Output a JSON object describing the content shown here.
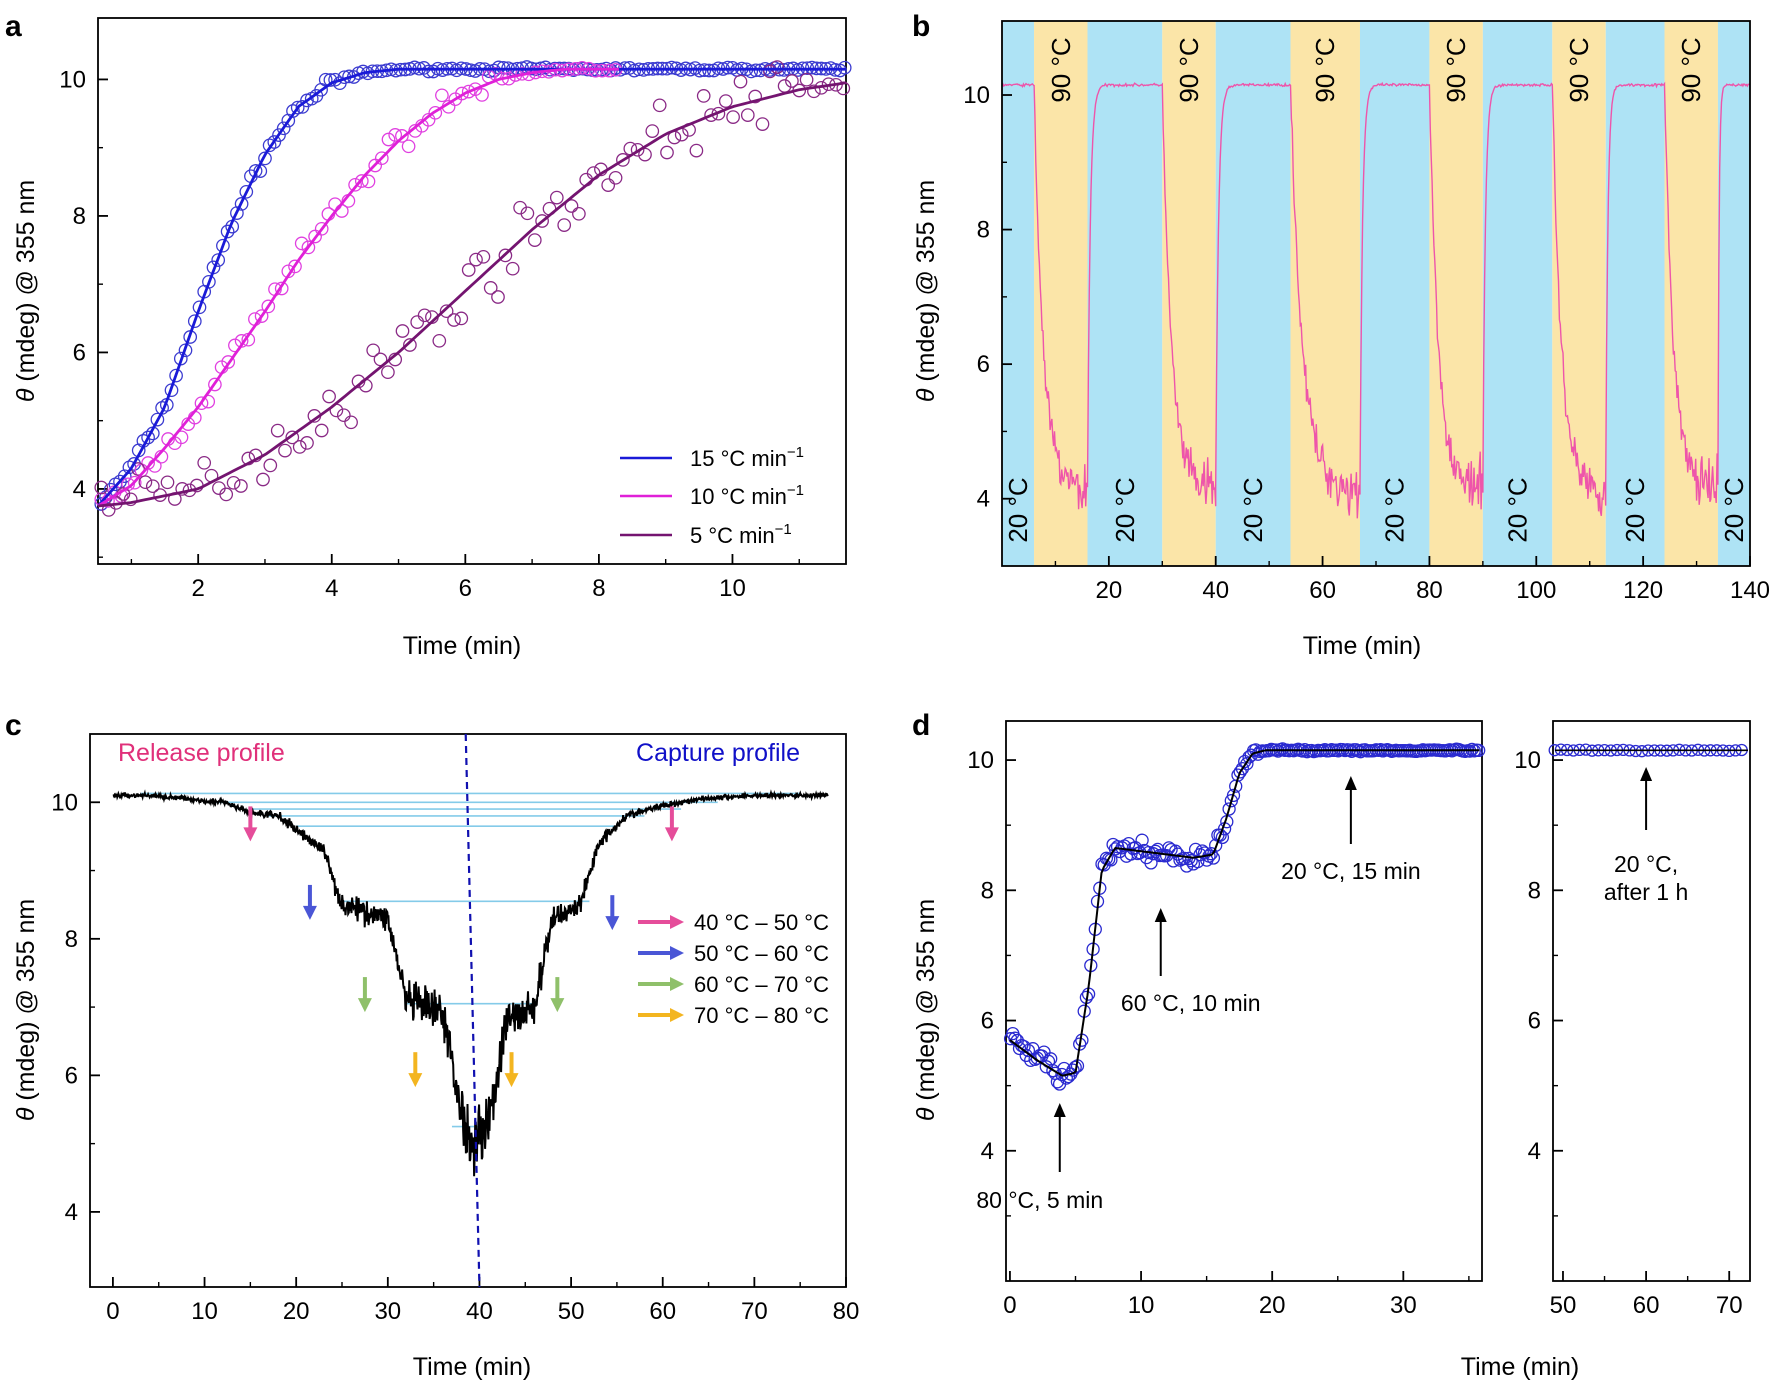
{
  "chart_data": [
    {
      "panel": "a",
      "type": "scatter",
      "panel_label": "a",
      "xlabel": "Time (min)",
      "ylabel_theta": "θ",
      "ylabel_rest": " (mdeg) @ 355 nm",
      "xlim": [
        0.5,
        11.7
      ],
      "ylim": [
        2.9,
        10.9
      ],
      "xticks": [
        2,
        4,
        6,
        8,
        10
      ],
      "yticks": [
        4,
        6,
        8,
        10
      ],
      "series": [
        {
          "name": "15 °C min",
          "sup": "−1",
          "color": "#1a1ad8",
          "marker_color": "#3b3bd0",
          "curve": {
            "x": [
              0.5,
              1,
              1.5,
              2,
              2.5,
              3,
              3.5,
              4,
              4.5,
              5,
              6,
              8,
              10,
              11.7
            ],
            "y": [
              3.75,
              4.3,
              5.2,
              6.6,
              7.9,
              8.9,
              9.6,
              9.95,
              10.1,
              10.15,
              10.15,
              10.15,
              10.15,
              10.15
            ]
          }
        },
        {
          "name": "10 °C min",
          "sup": "−1",
          "color": "#e020d8",
          "marker_color": "#e040e0",
          "curve": {
            "x": [
              0.5,
              1,
              1.5,
              2,
              2.5,
              3,
              3.5,
              4,
              4.5,
              5,
              5.5,
              6,
              6.5,
              7,
              7.5,
              8,
              8.3
            ],
            "y": [
              3.75,
              4.05,
              4.6,
              5.2,
              5.9,
              6.6,
              7.35,
              8.0,
              8.6,
              9.1,
              9.5,
              9.8,
              10.0,
              10.1,
              10.15,
              10.15,
              10.15
            ]
          }
        },
        {
          "name": "5 °C min",
          "sup": "−1",
          "color": "#741470",
          "marker_color": "#8a2a86",
          "curve": {
            "x": [
              0.5,
              1,
              2,
              3,
              4,
              5,
              6,
              7,
              8,
              9,
              10,
              11,
              11.7
            ],
            "y": [
              3.75,
              3.8,
              4.0,
              4.5,
              5.2,
              6.0,
              6.9,
              7.8,
              8.6,
              9.2,
              9.6,
              9.85,
              9.95
            ]
          }
        }
      ]
    },
    {
      "panel": "b",
      "type": "line",
      "panel_label": "b",
      "xlabel": "Time (min)",
      "ylabel_theta": "θ",
      "ylabel_rest": " (mdeg) @ 355 nm",
      "xlim": [
        0,
        140
      ],
      "ylim": [
        3.0,
        11.1
      ],
      "xticks": [
        20,
        40,
        60,
        80,
        100,
        120,
        140
      ],
      "yticks": [
        4,
        6,
        8,
        10
      ],
      "line_color": "#ee55aa",
      "cold_color": "#aee3f5",
      "hot_color": "#fbe5a8",
      "bands": [
        {
          "from": 0,
          "to": 6,
          "label": "20 °C"
        },
        {
          "from": 6,
          "to": 16,
          "label": "90 °C"
        },
        {
          "from": 16,
          "to": 30,
          "label": "20 °C"
        },
        {
          "from": 30,
          "to": 40,
          "label": "90 °C"
        },
        {
          "from": 40,
          "to": 54,
          "label": "20 °C"
        },
        {
          "from": 54,
          "to": 67,
          "label": "90 °C"
        },
        {
          "from": 67,
          "to": 80,
          "label": "20 °C"
        },
        {
          "from": 80,
          "to": 90,
          "label": "90 °C"
        },
        {
          "from": 90,
          "to": 103,
          "label": "20 °C"
        },
        {
          "from": 103,
          "to": 113,
          "label": "90 °C"
        },
        {
          "from": 113,
          "to": 124,
          "label": "20 °C"
        },
        {
          "from": 124,
          "to": 134,
          "label": "90 °C"
        },
        {
          "from": 134,
          "to": 140,
          "label": "20 °C"
        }
      ],
      "high_value": 10.15,
      "low_value": 4.2
    },
    {
      "panel": "c",
      "type": "line",
      "panel_label": "c",
      "xlabel": "Time (min)",
      "ylabel_theta": "θ",
      "ylabel_rest": " (mdeg) @ 355 nm",
      "xlim": [
        -2.5,
        80
      ],
      "ylim": [
        2.9,
        11.0
      ],
      "xticks": [
        0,
        10,
        20,
        30,
        40,
        50,
        60,
        70,
        80
      ],
      "yticks": [
        4,
        6,
        8,
        10
      ],
      "release_label": "Release profile",
      "capture_label": "Capture profile",
      "release_color": "#e0307a",
      "capture_color": "#1010c8",
      "divider_x": 40,
      "steps": {
        "x": [
          0,
          4,
          12,
          15,
          18,
          20,
          23,
          25,
          30,
          32,
          36,
          38,
          39,
          40,
          41,
          43,
          46,
          48,
          51,
          53,
          56,
          60,
          64,
          70,
          78
        ],
        "y": [
          10.1,
          10.1,
          10.0,
          9.85,
          9.8,
          9.6,
          9.3,
          8.5,
          8.3,
          7.1,
          6.9,
          5.5,
          5.0,
          5.2,
          5.3,
          6.8,
          7.0,
          8.3,
          8.5,
          9.4,
          9.8,
          9.95,
          10.05,
          10.1,
          10.1
        ]
      },
      "plateaus": [
        {
          "y": 10.13,
          "x1": 3,
          "x2": 75
        },
        {
          "y": 10.0,
          "x1": 11,
          "x2": 66
        },
        {
          "y": 9.9,
          "x1": 15,
          "x2": 62
        },
        {
          "y": 9.8,
          "x1": 17,
          "x2": 58
        },
        {
          "y": 9.65,
          "x1": 20,
          "x2": 55
        },
        {
          "y": 8.55,
          "x1": 25,
          "x2": 52
        },
        {
          "y": 7.05,
          "x1": 32,
          "x2": 46
        },
        {
          "y": 5.25,
          "x1": 37,
          "x2": 41
        }
      ],
      "legend": [
        {
          "label": "40 °C – 50 °C",
          "color": "#e54d9a"
        },
        {
          "label": "50 °C – 60 °C",
          "color": "#4a56d6"
        },
        {
          "label": "60 °C – 70 °C",
          "color": "#8fc06a"
        },
        {
          "label": "70 °C – 80 °C",
          "color": "#f3b520"
        }
      ],
      "arrows": [
        {
          "x": 15,
          "y": 9.5,
          "group": 0
        },
        {
          "x": 21.5,
          "y": 8.35,
          "group": 1
        },
        {
          "x": 27.5,
          "y": 7.0,
          "group": 2
        },
        {
          "x": 33,
          "y": 5.9,
          "group": 3
        },
        {
          "x": 43.5,
          "y": 5.9,
          "group": 3
        },
        {
          "x": 48.5,
          "y": 7.0,
          "group": 2
        },
        {
          "x": 54.5,
          "y": 8.2,
          "group": 1
        },
        {
          "x": 61,
          "y": 9.5,
          "group": 0
        }
      ]
    },
    {
      "panel": "d",
      "type": "scatter",
      "panel_label": "d",
      "xlabel": "Time (min)",
      "ylabel_theta": "θ",
      "ylabel_rest": " (mdeg) @ 355 nm",
      "xlim": [
        -0.3,
        36
      ],
      "ylim": [
        2.0,
        10.6
      ],
      "xticks": [
        0,
        10,
        20,
        30
      ],
      "yticks": [
        4,
        6,
        8,
        10
      ],
      "xlim_right": [
        48.8,
        72.5
      ],
      "xticks_right": [
        50,
        60,
        70
      ],
      "marker_color": "#2a2ad0",
      "curve": {
        "x": [
          0,
          2,
          4,
          5,
          6,
          7,
          8,
          10,
          12,
          14,
          15.5,
          16.5,
          17.5,
          18.5,
          19.5,
          21,
          25,
          36
        ],
        "y": [
          5.7,
          5.4,
          5.15,
          5.2,
          6.5,
          8.3,
          8.65,
          8.6,
          8.55,
          8.5,
          8.55,
          9.1,
          9.8,
          10.1,
          10.15,
          10.15,
          10.15,
          10.15
        ]
      },
      "right_value": 10.15,
      "annotations": [
        {
          "text": "80 °C, 5 min",
          "arrow_x": 3.8
        },
        {
          "text": "60 °C, 10 min",
          "arrow_x": 11.5
        },
        {
          "text": "20 °C, 15 min",
          "arrow_x": 26.0
        },
        {
          "text": "20 °C,",
          "text2": "after 1 h",
          "arrow_x": 60
        }
      ]
    }
  ]
}
